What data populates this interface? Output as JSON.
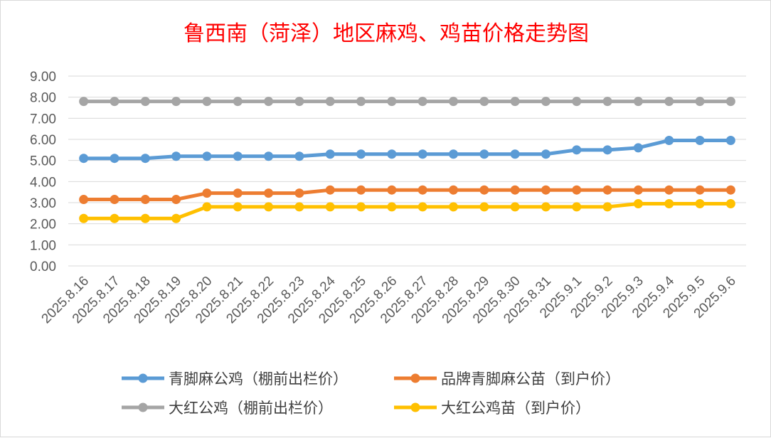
{
  "chart_data": {
    "type": "line",
    "title": "鲁西南（菏泽）地区麻鸡、鸡苗价格走势图",
    "xlabel": "",
    "ylabel": "",
    "ylim": [
      0,
      9
    ],
    "y_ticks": [
      "0.00",
      "1.00",
      "2.00",
      "3.00",
      "4.00",
      "5.00",
      "6.00",
      "7.00",
      "8.00",
      "9.00"
    ],
    "grid": true,
    "legend_position": "bottom",
    "categories": [
      "2025.8.16",
      "2025.8.17",
      "2025.8.18",
      "2025.8.19",
      "2025.8.20",
      "2025.8.21",
      "2025.8.22",
      "2025.8.23",
      "2025.8.24",
      "2025.8.25",
      "2025.8.26",
      "2025.8.27",
      "2025.8.28",
      "2025.8.29",
      "2025.8.30",
      "2025.8.31",
      "2025.9.1",
      "2025.9.2",
      "2025.9.3",
      "2025.9.4",
      "2025.9.5",
      "2025.9.6"
    ],
    "series": [
      {
        "name": "青脚麻公鸡（棚前出栏价）",
        "color": "#5b9bd5",
        "values": [
          5.1,
          5.1,
          5.1,
          5.2,
          5.2,
          5.2,
          5.2,
          5.2,
          5.3,
          5.3,
          5.3,
          5.3,
          5.3,
          5.3,
          5.3,
          5.3,
          5.5,
          5.5,
          5.6,
          5.95,
          5.95,
          5.95
        ]
      },
      {
        "name": "品牌青脚麻公苗（到户价）",
        "color": "#ed7d31",
        "values": [
          3.15,
          3.15,
          3.15,
          3.15,
          3.45,
          3.45,
          3.45,
          3.45,
          3.6,
          3.6,
          3.6,
          3.6,
          3.6,
          3.6,
          3.6,
          3.6,
          3.6,
          3.6,
          3.6,
          3.6,
          3.6,
          3.6
        ]
      },
      {
        "name": "大红公鸡（棚前出栏价）",
        "color": "#a5a5a5",
        "values": [
          7.8,
          7.8,
          7.8,
          7.8,
          7.8,
          7.8,
          7.8,
          7.8,
          7.8,
          7.8,
          7.8,
          7.8,
          7.8,
          7.8,
          7.8,
          7.8,
          7.8,
          7.8,
          7.8,
          7.8,
          7.8,
          7.8
        ]
      },
      {
        "name": "大红公鸡苗（到户价）",
        "color": "#ffc000",
        "values": [
          2.25,
          2.25,
          2.25,
          2.25,
          2.8,
          2.8,
          2.8,
          2.8,
          2.8,
          2.8,
          2.8,
          2.8,
          2.8,
          2.8,
          2.8,
          2.8,
          2.8,
          2.8,
          2.95,
          2.95,
          2.95,
          2.95
        ]
      }
    ]
  }
}
